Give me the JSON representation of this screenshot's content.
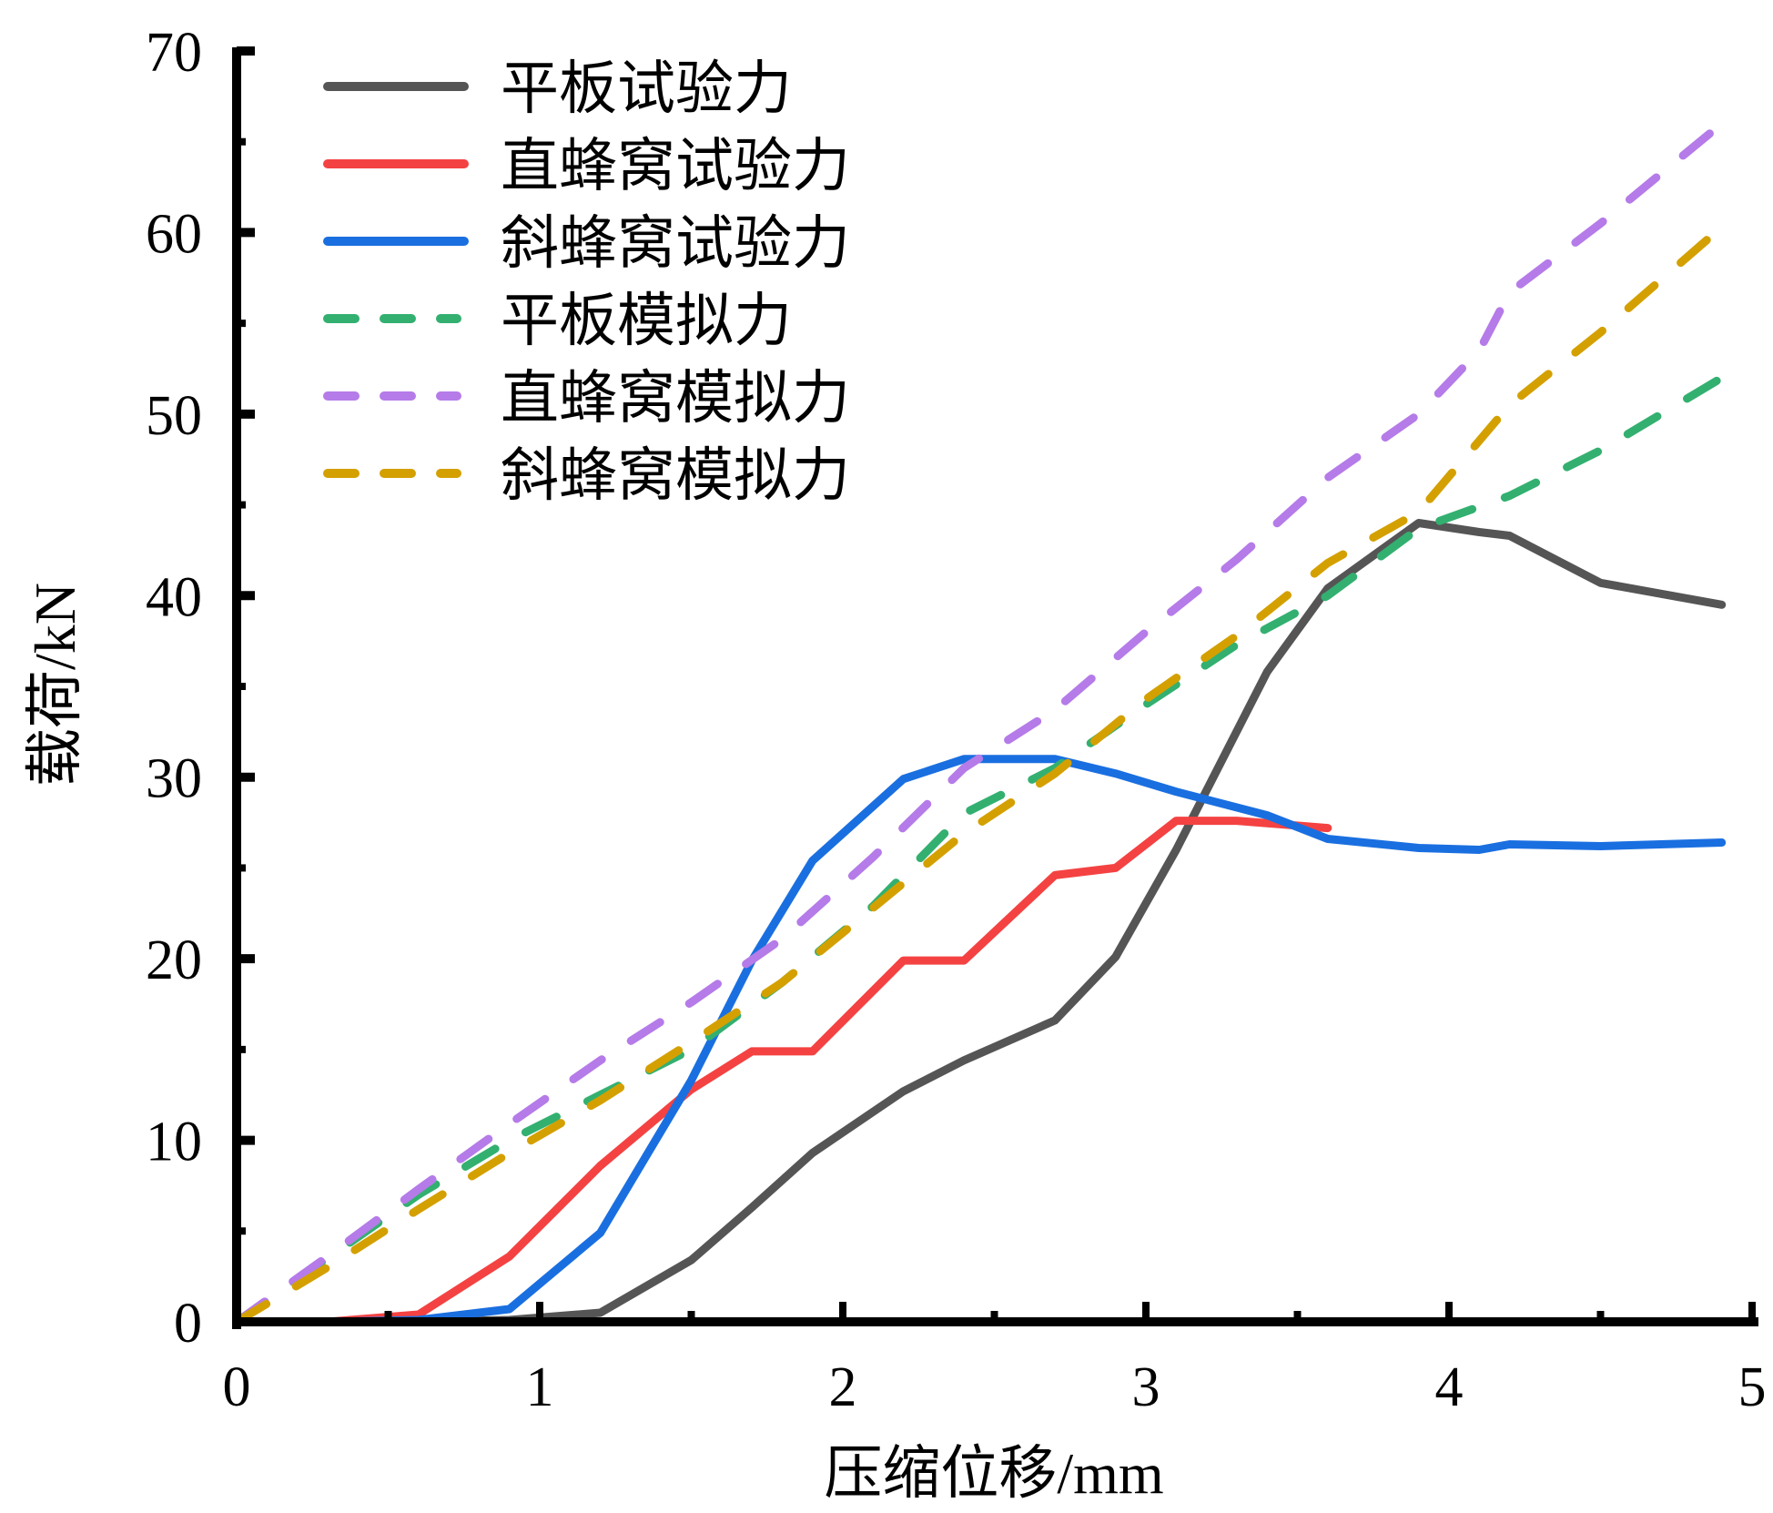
{
  "chart_data": {
    "type": "line",
    "title": "",
    "xlabel": "压缩位移/mm",
    "ylabel": "载荷/kN",
    "xlim": [
      0,
      5
    ],
    "ylim": [
      0,
      70
    ],
    "xticks": [
      0,
      1,
      2,
      3,
      4,
      5
    ],
    "yticks": [
      0,
      10,
      20,
      30,
      40,
      50,
      60,
      70
    ],
    "grid": false,
    "legend_position": "top-left",
    "series": [
      {
        "name": "平板试验力",
        "style": "solid",
        "color": "#555555",
        "x": [
          0,
          0.3,
          0.6,
          0.9,
          1.2,
          1.5,
          1.7,
          1.9,
          2.2,
          2.4,
          2.7,
          2.9,
          3.1,
          3.4,
          3.6,
          3.9,
          4.1,
          4.2,
          4.5,
          4.9
        ],
        "y": [
          0,
          0,
          0,
          0.1,
          0.5,
          3.4,
          6.3,
          9.3,
          12.7,
          14.4,
          16.6,
          20.1,
          26.0,
          35.8,
          40.4,
          44.0,
          43.5,
          43.3,
          40.7,
          39.5
        ]
      },
      {
        "name": "直蜂窝试验力",
        "style": "solid",
        "color": "#f44242",
        "x": [
          0,
          0.3,
          0.6,
          0.9,
          1.2,
          1.5,
          1.7,
          1.9,
          2.2,
          2.4,
          2.7,
          2.9,
          3.1,
          3.3,
          3.6
        ],
        "y": [
          0,
          0,
          0.4,
          3.6,
          8.6,
          12.8,
          14.9,
          14.9,
          19.9,
          19.9,
          24.6,
          25.0,
          27.6,
          27.6,
          27.2
        ]
      },
      {
        "name": "斜蜂窝试验力",
        "style": "solid",
        "color": "#1a6fe0",
        "x": [
          0,
          0.3,
          0.6,
          0.9,
          1.2,
          1.5,
          1.7,
          1.9,
          2.2,
          2.4,
          2.7,
          2.9,
          3.1,
          3.4,
          3.6,
          3.9,
          4.1,
          4.2,
          4.5,
          4.9
        ],
        "y": [
          0,
          0,
          0.1,
          0.7,
          4.9,
          13.3,
          19.9,
          25.4,
          29.9,
          31.0,
          31.0,
          30.2,
          29.2,
          27.9,
          26.6,
          26.1,
          26.0,
          26.3,
          26.2,
          26.4
        ]
      },
      {
        "name": "平板模拟力",
        "style": "dashed",
        "color": "#33b070",
        "x": [
          0,
          0.3,
          0.6,
          0.9,
          1.2,
          1.5,
          1.8,
          2.1,
          2.4,
          2.7,
          3.0,
          3.3,
          3.6,
          3.9,
          4.2,
          4.5,
          4.9
        ],
        "y": [
          0,
          3.5,
          7.0,
          10.0,
          12.5,
          15.0,
          18.7,
          22.9,
          28.0,
          30.5,
          34.0,
          37.3,
          40.0,
          43.7,
          45.5,
          48.0,
          52.0
        ]
      },
      {
        "name": "直蜂窝模拟力",
        "style": "dashed",
        "color": "#b57be8",
        "x": [
          0,
          0.3,
          0.6,
          0.9,
          1.2,
          1.5,
          1.8,
          2.1,
          2.4,
          2.7,
          3.0,
          3.3,
          3.6,
          3.9,
          4.1,
          4.2,
          4.5,
          4.9
        ],
        "y": [
          0,
          3.6,
          7.3,
          10.9,
          14.4,
          17.6,
          21.1,
          25.6,
          30.5,
          33.7,
          38.0,
          42.0,
          46.5,
          50.0,
          53.5,
          56.7,
          60.5,
          66.0
        ]
      },
      {
        "name": "斜蜂窝模拟力",
        "style": "dashed",
        "color": "#d4a000",
        "x": [
          0,
          0.3,
          0.6,
          0.9,
          1.2,
          1.5,
          1.8,
          2.1,
          2.4,
          2.7,
          3.0,
          3.3,
          3.6,
          3.9,
          4.2,
          4.5,
          4.9
        ],
        "y": [
          0,
          3.0,
          6.2,
          9.3,
          12.2,
          15.4,
          18.7,
          22.8,
          26.9,
          30.2,
          34.3,
          37.8,
          41.8,
          44.6,
          50.5,
          54.5,
          60.3
        ]
      }
    ]
  }
}
